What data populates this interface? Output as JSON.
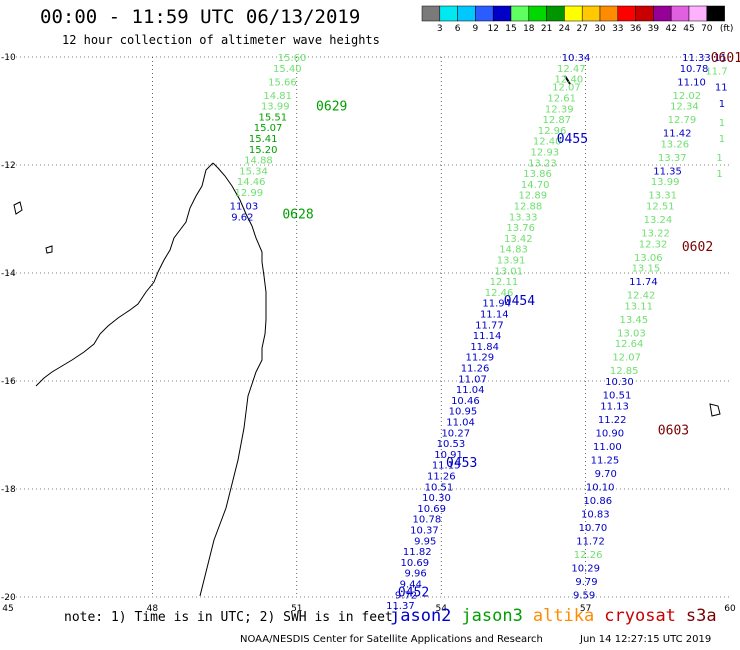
{
  "header": {
    "title": "00:00 - 11:59 UTC 06/13/2019",
    "subtitle": "12 hour collection of altimeter wave heights"
  },
  "colorbar": {
    "unit": "(ft)",
    "ticks": [
      "3",
      "6",
      "9",
      "12",
      "15",
      "18",
      "21",
      "24",
      "27",
      "30",
      "33",
      "36",
      "39",
      "42",
      "45",
      "70"
    ],
    "colors": [
      "#7a7a7a",
      "#00e8f0",
      "#00c8ff",
      "#2a5cff",
      "#0000c8",
      "#60ff60",
      "#00d800",
      "#009600",
      "#ffff00",
      "#ffc800",
      "#ff8c00",
      "#ff0000",
      "#c80000",
      "#960096",
      "#e060e0",
      "#ffb0ff",
      "#000000"
    ]
  },
  "axes": {
    "lon_labels": [
      "45",
      "48",
      "51",
      "54",
      "57",
      "60"
    ],
    "lat_labels": [
      "-10",
      "-12",
      "-14",
      "-16",
      "-18",
      "-20"
    ]
  },
  "satellite_colors": {
    "jason2": "#0000c8",
    "jason3": "#00a000",
    "altika": "#ff8c00",
    "cryosat": "#c80000",
    "s3a": "#7a0000",
    "light_green": "#70e070"
  },
  "passes": [
    {
      "time": "0629",
      "color": "#00a000",
      "lon": 51.4,
      "lat": -10.9
    },
    {
      "time": "0628",
      "color": "#00a000",
      "lon": 50.7,
      "lat": -12.9
    },
    {
      "time": "0455",
      "color": "#0000c8",
      "lon": 56.4,
      "lat": -11.5
    },
    {
      "time": "0454",
      "color": "#0000c8",
      "lon": 55.3,
      "lat": -14.5
    },
    {
      "time": "0453",
      "color": "#0000c8",
      "lon": 54.1,
      "lat": -17.5
    },
    {
      "time": "0452",
      "color": "#0000c8",
      "lon": 53.1,
      "lat": -19.9
    },
    {
      "time": "0601",
      "color": "#7a0000",
      "lon": 59.6,
      "lat": -10.0
    },
    {
      "time": "0602",
      "color": "#7a0000",
      "lon": 59.0,
      "lat": -13.5
    },
    {
      "time": "0603",
      "color": "#7a0000",
      "lon": 58.5,
      "lat": -16.9
    }
  ],
  "tracks": [
    {
      "values": [
        {
          "t": "15.60",
          "c": "#70e070",
          "lon": 51.2,
          "lat": -10.0
        },
        {
          "t": "15.40",
          "c": "#70e070",
          "lon": 51.1,
          "lat": -10.2
        },
        {
          "t": "15.66",
          "c": "#70e070",
          "lon": 51.0,
          "lat": -10.45
        },
        {
          "t": "14.81",
          "c": "#70e070",
          "lon": 50.9,
          "lat": -10.7
        },
        {
          "t": "13.99",
          "c": "#70e070",
          "lon": 50.85,
          "lat": -10.9
        },
        {
          "t": "15.51",
          "c": "#00a000",
          "lon": 50.8,
          "lat": -11.1
        },
        {
          "t": "15.07",
          "c": "#00a000",
          "lon": 50.7,
          "lat": -11.3
        },
        {
          "t": "15.41",
          "c": "#00a000",
          "lon": 50.6,
          "lat": -11.5
        },
        {
          "t": "15.20",
          "c": "#00a000",
          "lon": 50.6,
          "lat": -11.7
        },
        {
          "t": "14.88",
          "c": "#70e070",
          "lon": 50.5,
          "lat": -11.9
        },
        {
          "t": "15.34",
          "c": "#70e070",
          "lon": 50.4,
          "lat": -12.1
        },
        {
          "t": "14.46",
          "c": "#70e070",
          "lon": 50.35,
          "lat": -12.3
        },
        {
          "t": "12.99",
          "c": "#70e070",
          "lon": 50.3,
          "lat": -12.5
        },
        {
          "t": "11.03",
          "c": "#0000c8",
          "lon": 50.2,
          "lat": -12.75
        },
        {
          "t": "9.62",
          "c": "#0000c8",
          "lon": 50.1,
          "lat": -12.95
        }
      ]
    },
    {
      "values": [
        {
          "t": "10.34",
          "c": "#0000c8",
          "lon": 57.1,
          "lat": -10.0
        },
        {
          "t": "12.47",
          "c": "#70e070",
          "lon": 57.0,
          "lat": -10.2
        },
        {
          "t": "12.40",
          "c": "#70e070",
          "lon": 56.95,
          "lat": -10.4
        },
        {
          "t": "12.07",
          "c": "#70e070",
          "lon": 56.9,
          "lat": -10.55
        },
        {
          "t": "12.61",
          "c": "#70e070",
          "lon": 56.8,
          "lat": -10.75
        },
        {
          "t": "12.39",
          "c": "#70e070",
          "lon": 56.75,
          "lat": -10.95
        },
        {
          "t": "12.87",
          "c": "#70e070",
          "lon": 56.7,
          "lat": -11.15
        },
        {
          "t": "12.96",
          "c": "#70e070",
          "lon": 56.6,
          "lat": -11.35
        },
        {
          "t": "12.40",
          "c": "#70e070",
          "lon": 56.5,
          "lat": -11.55
        },
        {
          "t": "12.93",
          "c": "#70e070",
          "lon": 56.45,
          "lat": -11.75
        },
        {
          "t": "13.23",
          "c": "#70e070",
          "lon": 56.4,
          "lat": -11.95
        },
        {
          "t": "13.86",
          "c": "#70e070",
          "lon": 56.3,
          "lat": -12.15
        },
        {
          "t": "14.70",
          "c": "#70e070",
          "lon": 56.25,
          "lat": -12.35
        },
        {
          "t": "12.89",
          "c": "#70e070",
          "lon": 56.2,
          "lat": -12.55
        },
        {
          "t": "12.88",
          "c": "#70e070",
          "lon": 56.1,
          "lat": -12.75
        },
        {
          "t": "13.33",
          "c": "#70e070",
          "lon": 56.0,
          "lat": -12.95
        },
        {
          "t": "13.76",
          "c": "#70e070",
          "lon": 55.95,
          "lat": -13.15
        },
        {
          "t": "13.42",
          "c": "#70e070",
          "lon": 55.9,
          "lat": -13.35
        },
        {
          "t": "14.83",
          "c": "#70e070",
          "lon": 55.8,
          "lat": -13.55
        },
        {
          "t": "13.91",
          "c": "#70e070",
          "lon": 55.75,
          "lat": -13.75
        },
        {
          "t": "13.01",
          "c": "#70e070",
          "lon": 55.7,
          "lat": -13.95
        },
        {
          "t": "12.11",
          "c": "#70e070",
          "lon": 55.6,
          "lat": -14.15
        },
        {
          "t": "12.46",
          "c": "#70e070",
          "lon": 55.5,
          "lat": -14.35
        },
        {
          "t": "11.94",
          "c": "#0000c8",
          "lon": 55.45,
          "lat": -14.55
        },
        {
          "t": "11.14",
          "c": "#0000c8",
          "lon": 55.4,
          "lat": -14.75
        },
        {
          "t": "11.77",
          "c": "#0000c8",
          "lon": 55.3,
          "lat": -14.95
        },
        {
          "t": "11.14",
          "c": "#0000c8",
          "lon": 55.25,
          "lat": -15.15
        },
        {
          "t": "11.84",
          "c": "#0000c8",
          "lon": 55.2,
          "lat": -15.35
        },
        {
          "t": "11.29",
          "c": "#0000c8",
          "lon": 55.1,
          "lat": -15.55
        },
        {
          "t": "11.26",
          "c": "#0000c8",
          "lon": 55.0,
          "lat": -15.75
        },
        {
          "t": "11.07",
          "c": "#0000c8",
          "lon": 54.95,
          "lat": -15.95
        },
        {
          "t": "11.04",
          "c": "#0000c8",
          "lon": 54.9,
          "lat": -16.15
        },
        {
          "t": "10.46",
          "c": "#0000c8",
          "lon": 54.8,
          "lat": -16.35
        },
        {
          "t": "10.95",
          "c": "#0000c8",
          "lon": 54.75,
          "lat": -16.55
        },
        {
          "t": "11.04",
          "c": "#0000c8",
          "lon": 54.7,
          "lat": -16.75
        },
        {
          "t": "10.27",
          "c": "#0000c8",
          "lon": 54.6,
          "lat": -16.95
        },
        {
          "t": "10.53",
          "c": "#0000c8",
          "lon": 54.5,
          "lat": -17.15
        },
        {
          "t": "10.91",
          "c": "#0000c8",
          "lon": 54.45,
          "lat": -17.35
        },
        {
          "t": "11.15",
          "c": "#0000c8",
          "lon": 54.4,
          "lat": -17.55
        },
        {
          "t": "11.26",
          "c": "#0000c8",
          "lon": 54.3,
          "lat": -17.75
        },
        {
          "t": "10.51",
          "c": "#0000c8",
          "lon": 54.25,
          "lat": -17.95
        },
        {
          "t": "10.30",
          "c": "#0000c8",
          "lon": 54.2,
          "lat": -18.15
        },
        {
          "t": "10.69",
          "c": "#0000c8",
          "lon": 54.1,
          "lat": -18.35
        },
        {
          "t": "10.78",
          "c": "#0000c8",
          "lon": 54.0,
          "lat": -18.55
        },
        {
          "t": "10.37",
          "c": "#0000c8",
          "lon": 53.95,
          "lat": -18.75
        },
        {
          "t": "9.95",
          "c": "#0000c8",
          "lon": 53.9,
          "lat": -18.95
        },
        {
          "t": "11.82",
          "c": "#0000c8",
          "lon": 53.8,
          "lat": -19.15
        },
        {
          "t": "10.69",
          "c": "#0000c8",
          "lon": 53.75,
          "lat": -19.35
        },
        {
          "t": "9.96",
          "c": "#0000c8",
          "lon": 53.7,
          "lat": -19.55
        },
        {
          "t": "9.44",
          "c": "#0000c8",
          "lon": 53.6,
          "lat": -19.75
        },
        {
          "t": "9.72",
          "c": "#0000c8",
          "lon": 53.5,
          "lat": -19.95
        },
        {
          "t": "11.37",
          "c": "#0000c8",
          "lon": 53.45,
          "lat": -20.15
        }
      ]
    },
    {
      "values": [
        {
          "t": "11.33",
          "c": "#0000c8",
          "lon": 59.6,
          "lat": -10.0
        },
        {
          "t": "10.78",
          "c": "#0000c8",
          "lon": 59.55,
          "lat": -10.2
        },
        {
          "t": "11.10",
          "c": "#0000c8",
          "lon": 59.5,
          "lat": -10.45
        },
        {
          "t": "12.02",
          "c": "#70e070",
          "lon": 59.4,
          "lat": -10.7
        },
        {
          "t": "12.34",
          "c": "#70e070",
          "lon": 59.35,
          "lat": -10.9
        },
        {
          "t": "12.79",
          "c": "#70e070",
          "lon": 59.3,
          "lat": -11.15
        },
        {
          "t": "11.42",
          "c": "#0000c8",
          "lon": 59.2,
          "lat": -11.4
        },
        {
          "t": "13.26",
          "c": "#70e070",
          "lon": 59.15,
          "lat": -11.6
        },
        {
          "t": "13.37",
          "c": "#70e070",
          "lon": 59.1,
          "lat": -11.85
        },
        {
          "t": "11.35",
          "c": "#0000c8",
          "lon": 59.0,
          "lat": -12.1
        },
        {
          "t": "13.99",
          "c": "#70e070",
          "lon": 58.95,
          "lat": -12.3
        },
        {
          "t": "13.31",
          "c": "#70e070",
          "lon": 58.9,
          "lat": -12.55
        },
        {
          "t": "12.51",
          "c": "#70e070",
          "lon": 58.85,
          "lat": -12.75
        },
        {
          "t": "13.24",
          "c": "#70e070",
          "lon": 58.8,
          "lat": -13.0
        },
        {
          "t": "13.22",
          "c": "#70e070",
          "lon": 58.75,
          "lat": -13.25
        },
        {
          "t": "12.32",
          "c": "#70e070",
          "lon": 58.7,
          "lat": -13.45
        },
        {
          "t": "13.06",
          "c": "#70e070",
          "lon": 58.6,
          "lat": -13.7
        },
        {
          "t": "13.15",
          "c": "#70e070",
          "lon": 58.55,
          "lat": -13.9
        },
        {
          "t": "11.74",
          "c": "#0000c8",
          "lon": 58.5,
          "lat": -14.15
        },
        {
          "t": "12.42",
          "c": "#70e070",
          "lon": 58.45,
          "lat": -14.4
        },
        {
          "t": "13.11",
          "c": "#70e070",
          "lon": 58.4,
          "lat": -14.6
        },
        {
          "t": "13.45",
          "c": "#70e070",
          "lon": 58.3,
          "lat": -14.85
        },
        {
          "t": "13.03",
          "c": "#70e070",
          "lon": 58.25,
          "lat": -15.1
        },
        {
          "t": "12.64",
          "c": "#70e070",
          "lon": 58.2,
          "lat": -15.3
        },
        {
          "t": "12.07",
          "c": "#70e070",
          "lon": 58.15,
          "lat": -15.55
        },
        {
          "t": "12.85",
          "c": "#70e070",
          "lon": 58.1,
          "lat": -15.8
        },
        {
          "t": "10.30",
          "c": "#0000c8",
          "lon": 58.0,
          "lat": -16.0
        },
        {
          "t": "10.51",
          "c": "#0000c8",
          "lon": 57.95,
          "lat": -16.25
        },
        {
          "t": "11.13",
          "c": "#0000c8",
          "lon": 57.9,
          "lat": -16.45
        },
        {
          "t": "11.22",
          "c": "#0000c8",
          "lon": 57.85,
          "lat": -16.7
        },
        {
          "t": "10.90",
          "c": "#0000c8",
          "lon": 57.8,
          "lat": -16.95
        },
        {
          "t": "11.00",
          "c": "#0000c8",
          "lon": 57.75,
          "lat": -17.2
        },
        {
          "t": "11.25",
          "c": "#0000c8",
          "lon": 57.7,
          "lat": -17.45
        },
        {
          "t": "9.70",
          "c": "#0000c8",
          "lon": 57.65,
          "lat": -17.7
        },
        {
          "t": "10.10",
          "c": "#0000c8",
          "lon": 57.6,
          "lat": -17.95
        },
        {
          "t": "10.86",
          "c": "#0000c8",
          "lon": 57.55,
          "lat": -18.2
        },
        {
          "t": "10.83",
          "c": "#0000c8",
          "lon": 57.5,
          "lat": -18.45
        },
        {
          "t": "10.70",
          "c": "#0000c8",
          "lon": 57.45,
          "lat": -18.7
        },
        {
          "t": "11.72",
          "c": "#0000c8",
          "lon": 57.4,
          "lat": -18.95
        },
        {
          "t": "12.26",
          "c": "#70e070",
          "lon": 57.35,
          "lat": -19.2
        },
        {
          "t": "10.29",
          "c": "#0000c8",
          "lon": 57.3,
          "lat": -19.45
        },
        {
          "t": "9.79",
          "c": "#0000c8",
          "lon": 57.25,
          "lat": -19.7
        },
        {
          "t": "9.59",
          "c": "#0000c8",
          "lon": 57.2,
          "lat": -19.95
        }
      ]
    },
    {
      "values": [
        {
          "t": "11.",
          "c": "#0000c8",
          "lon": 60.0,
          "lat": -10.0
        },
        {
          "t": "11.7",
          "c": "#70e070",
          "lon": 59.95,
          "lat": -10.25
        },
        {
          "t": "11",
          "c": "#0000c8",
          "lon": 59.95,
          "lat": -10.55
        },
        {
          "t": "1",
          "c": "#0000c8",
          "lon": 59.9,
          "lat": -10.85
        },
        {
          "t": "1",
          "c": "#70e070",
          "lon": 59.9,
          "lat": -11.2
        },
        {
          "t": "1",
          "c": "#70e070",
          "lon": 59.9,
          "lat": -11.5
        },
        {
          "t": "1",
          "c": "#70e070",
          "lon": 59.85,
          "lat": -11.85
        },
        {
          "t": "1",
          "c": "#70e070",
          "lon": 59.85,
          "lat": -12.15
        }
      ]
    }
  ],
  "footer": {
    "note": "note: 1) Time is in UTC; 2) SWH is in feet",
    "sats": [
      {
        "label": "jason2",
        "color": "#0000c8"
      },
      {
        "label": "jason3",
        "color": "#00a000"
      },
      {
        "label": "altika",
        "color": "#ff8c00"
      },
      {
        "label": "cryosat",
        "color": "#c80000"
      },
      {
        "label": "s3a",
        "color": "#7a0000"
      }
    ],
    "credit": "NOAA/NESDIS Center for Satellite Applications and Research",
    "timestamp": "Jun 14 12:27:15 UTC 2019"
  }
}
